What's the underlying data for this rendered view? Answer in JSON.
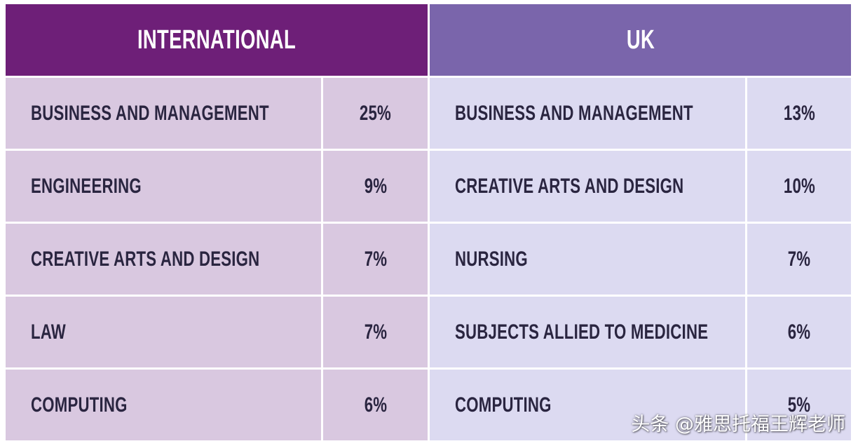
{
  "colors": {
    "international_header": "#6e1f78",
    "uk_header": "#7a65ab",
    "international_cell": "#d9c8e0",
    "uk_cell": "#dcdaf1",
    "text": "#2a2540"
  },
  "chart_data": {
    "type": "table",
    "columns": [
      {
        "heading": "INTERNATIONAL",
        "rows": [
          {
            "subject": "BUSINESS AND MANAGEMENT",
            "share": "25%"
          },
          {
            "subject": "ENGINEERING",
            "share": "9%"
          },
          {
            "subject": "CREATIVE ARTS AND DESIGN",
            "share": "7%"
          },
          {
            "subject": "LAW",
            "share": "7%"
          },
          {
            "subject": "COMPUTING",
            "share": "6%"
          }
        ]
      },
      {
        "heading": "UK",
        "rows": [
          {
            "subject": "BUSINESS AND MANAGEMENT",
            "share": "13%"
          },
          {
            "subject": "CREATIVE ARTS AND DESIGN",
            "share": "10%"
          },
          {
            "subject": "NURSING",
            "share": "7%"
          },
          {
            "subject": "SUBJECTS ALLIED TO MEDICINE",
            "share": "6%"
          },
          {
            "subject": "COMPUTING",
            "share": "5%"
          }
        ]
      }
    ]
  },
  "watermark": "头条 @雅思托福王辉老师"
}
